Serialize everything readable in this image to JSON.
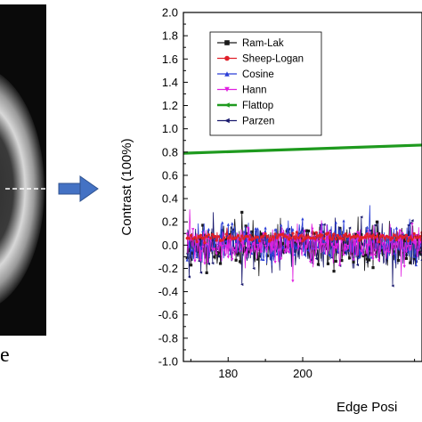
{
  "left_image": {
    "caption_fragment": "e"
  },
  "arrow": {
    "color": "#4472c4"
  },
  "chart_data": {
    "type": "line",
    "xlabel": "Edge Posi",
    "ylabel": "Contrast (100%)",
    "xlim": [
      168,
      232
    ],
    "ylim": [
      -1.0,
      2.0
    ],
    "x_ticks": [
      {
        "value": 180,
        "label": "180"
      },
      {
        "value": 200,
        "label": "200"
      }
    ],
    "y_ticks": [
      {
        "value": 2.0,
        "label": "2.0"
      },
      {
        "value": 1.8,
        "label": "1.8"
      },
      {
        "value": 1.6,
        "label": "1.6"
      },
      {
        "value": 1.4,
        "label": "1.4"
      },
      {
        "value": 1.2,
        "label": "1.2"
      },
      {
        "value": 1.0,
        "label": "1.0"
      },
      {
        "value": 0.8,
        "label": "0.8"
      },
      {
        "value": 0.6,
        "label": "0.6"
      },
      {
        "value": 0.4,
        "label": "0.4"
      },
      {
        "value": 0.2,
        "label": "0.2"
      },
      {
        "value": 0.0,
        "label": "0.0"
      },
      {
        "value": -0.2,
        "label": "-0.2"
      },
      {
        "value": -0.4,
        "label": "-0.4"
      },
      {
        "value": -0.6,
        "label": "-0.6"
      },
      {
        "value": -0.8,
        "label": "-0.8"
      },
      {
        "value": -1.0,
        "label": "-1.0"
      }
    ],
    "grid": false,
    "legend_position": "top-left",
    "series": [
      {
        "name": "Ram-Lak",
        "color": "#1a1a1a",
        "marker": "square",
        "amplitude": 0.26,
        "mean": 0.0,
        "seed": 11
      },
      {
        "name": "Sheep-Logan",
        "color": "#e0202a",
        "marker": "circle",
        "amplitude": 0.05,
        "mean": 0.07,
        "seed": 23
      },
      {
        "name": "Cosine",
        "color": "#2b3fd6",
        "marker": "triangle-up",
        "amplitude": 0.24,
        "mean": 0.02,
        "seed": 37
      },
      {
        "name": "Hann",
        "color": "#e020e0",
        "marker": "triangle-down",
        "amplitude": 0.22,
        "mean": 0.0,
        "seed": 41
      },
      {
        "name": "Flattop",
        "color": "#1e9a1e",
        "marker": "triangle-left",
        "x": [
          168,
          232
        ],
        "y": [
          0.79,
          0.86
        ]
      },
      {
        "name": "Parzen",
        "color": "#1a1a6e",
        "marker": "triangle-left",
        "amplitude": 0.28,
        "mean": 0.0,
        "seed": 59
      }
    ]
  }
}
